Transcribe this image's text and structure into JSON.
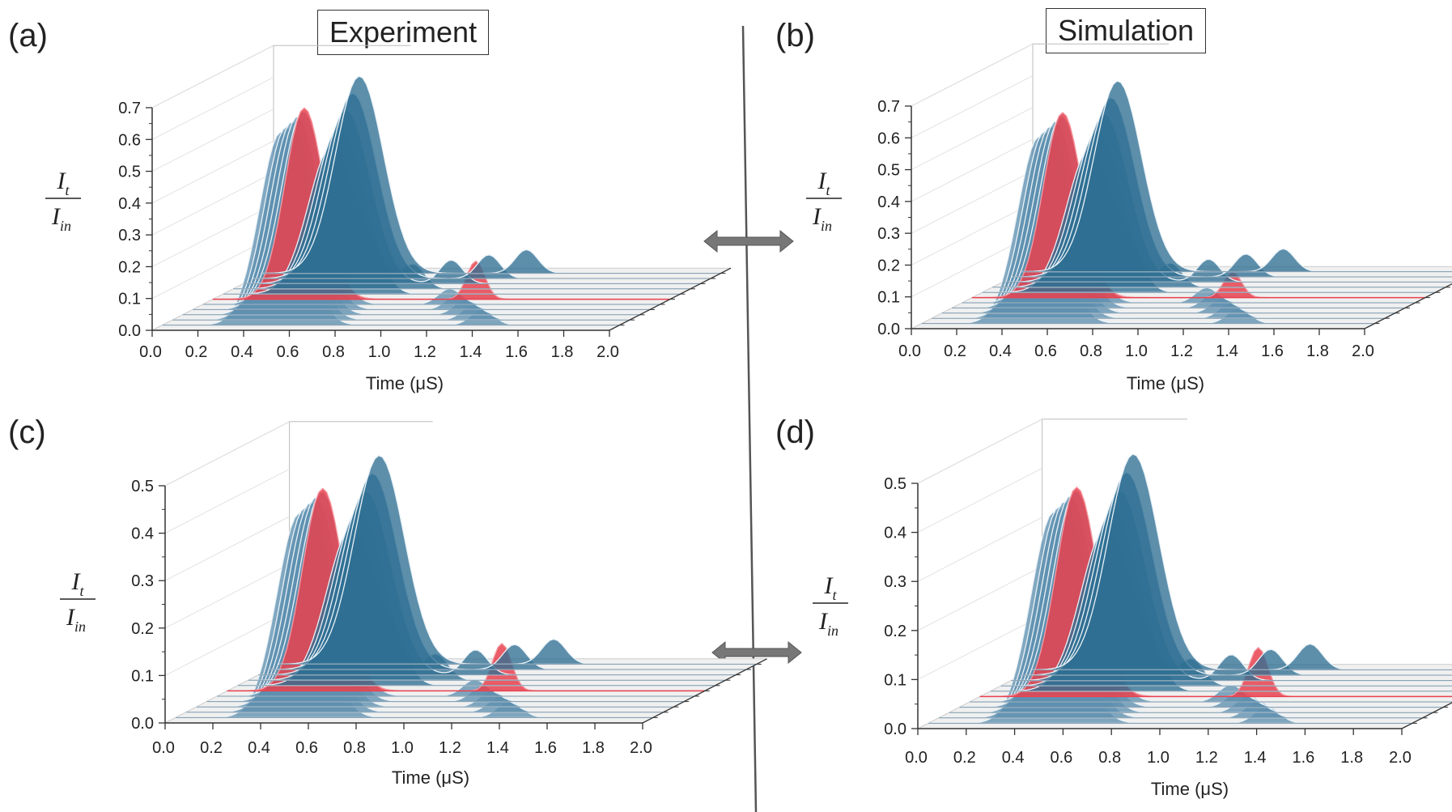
{
  "headers": {
    "left": "Experiment",
    "right": "Simulation"
  },
  "panel_labels": [
    "(a)",
    "(b)",
    "(c)",
    "(d)"
  ],
  "colors": {
    "trace": "#2f6f94",
    "trace_back": "#5d8fb0",
    "highlight": "#e8424f",
    "floor": "#f0f0f0",
    "arrow": "#777777"
  },
  "chart_data": [
    {
      "type": "area",
      "panel": "(a)",
      "subtitle": "Experiment",
      "xlabel": "Time (μS)",
      "ylabel": "It / Iin",
      "xlim": [
        0.0,
        2.0
      ],
      "ylim": [
        0.0,
        0.7
      ],
      "x_ticks": [
        "0.0",
        "0.2",
        "0.4",
        "0.6",
        "0.8",
        "1.0",
        "1.2",
        "1.4",
        "1.6",
        "1.8",
        "2.0"
      ],
      "y_ticks": [
        "0.0",
        "0.1",
        "0.2",
        "0.3",
        "0.4",
        "0.5",
        "0.6",
        "0.7"
      ],
      "series_count": 11,
      "highlight_series": 5,
      "main_peak": {
        "x": 0.5,
        "y": 0.62
      },
      "highlight_peak": {
        "x": 1.2,
        "y": 0.12
      }
    },
    {
      "type": "area",
      "panel": "(b)",
      "subtitle": "Simulation",
      "xlabel": "Time (μS)",
      "ylabel": "It / Iin",
      "xlim": [
        0.0,
        2.0
      ],
      "ylim": [
        0.0,
        0.7
      ],
      "x_ticks": [
        "0.0",
        "0.2",
        "0.4",
        "0.6",
        "0.8",
        "1.0",
        "1.2",
        "1.4",
        "1.6",
        "1.8",
        "2.0"
      ],
      "y_ticks": [
        "0.0",
        "0.1",
        "0.2",
        "0.3",
        "0.4",
        "0.5",
        "0.6",
        "0.7"
      ],
      "series_count": 11,
      "highlight_series": 5,
      "main_peak": {
        "x": 0.5,
        "y": 0.6
      },
      "highlight_peak": {
        "x": 1.2,
        "y": 0.08
      }
    },
    {
      "type": "area",
      "panel": "(c)",
      "subtitle": "Experiment",
      "xlabel": "Time (μS)",
      "ylabel": "It / Iin",
      "xlim": [
        0.0,
        2.0
      ],
      "ylim": [
        0.0,
        0.5
      ],
      "x_ticks": [
        "0.0",
        "0.2",
        "0.4",
        "0.6",
        "0.8",
        "1.0",
        "1.2",
        "1.4",
        "1.6",
        "1.8",
        "2.0"
      ],
      "y_ticks": [
        "0.0",
        "0.1",
        "0.2",
        "0.3",
        "0.4",
        "0.5"
      ],
      "series_count": 11,
      "highlight_series": 5,
      "main_peak": {
        "x": 0.5,
        "y": 0.44
      },
      "highlight_peak": {
        "x": 1.2,
        "y": 0.1
      }
    },
    {
      "type": "area",
      "panel": "(d)",
      "subtitle": "Simulation",
      "xlabel": "Time (μS)",
      "ylabel": "It / Iin",
      "xlim": [
        0.0,
        2.0
      ],
      "ylim": [
        0.0,
        0.5
      ],
      "x_ticks": [
        "0.0",
        "0.2",
        "0.4",
        "0.6",
        "0.8",
        "1.0",
        "1.2",
        "1.4",
        "1.6",
        "1.8",
        "2.0"
      ],
      "y_ticks": [
        "0.0",
        "0.1",
        "0.2",
        "0.3",
        "0.4",
        "0.5"
      ],
      "series_count": 11,
      "highlight_series": 5,
      "main_peak": {
        "x": 0.5,
        "y": 0.44
      },
      "highlight_peak": {
        "x": 1.2,
        "y": 0.1
      }
    }
  ]
}
